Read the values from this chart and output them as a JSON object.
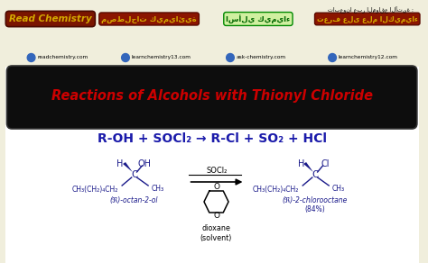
{
  "title": "Reactions of Alcohols with Thionyl Chloride",
  "title_color": "#cc0000",
  "title_bg": "#0d0d0d",
  "equation": "R-OH + SOCl₂ → R-Cl + SO₂ + HCl",
  "equation_color": "#1a1aaa",
  "bg_color": "#f0eedc",
  "main_bg": "#ffffff",
  "header_bg": "#f0eedc",
  "website1": "readchemistry.com",
  "website2": "learnchemistry13.com",
  "website3": "ask-chemistry.com",
  "website4": "learnchemistry12.com",
  "rc_text": "Read Chemistry",
  "rc_color": "#c8a000",
  "rc_bg": "#8B2200",
  "mol_color": "#1a1a8a",
  "reaction_left_label": "(R)-octan-2-ol",
  "reaction_right_label": "(R)-2-chlorooctane",
  "reaction_right_percent": "(84%)",
  "solvent_label1": "SOCl₂",
  "solvent_label2": "dioxane",
  "solvent_label3": "(solvent)"
}
